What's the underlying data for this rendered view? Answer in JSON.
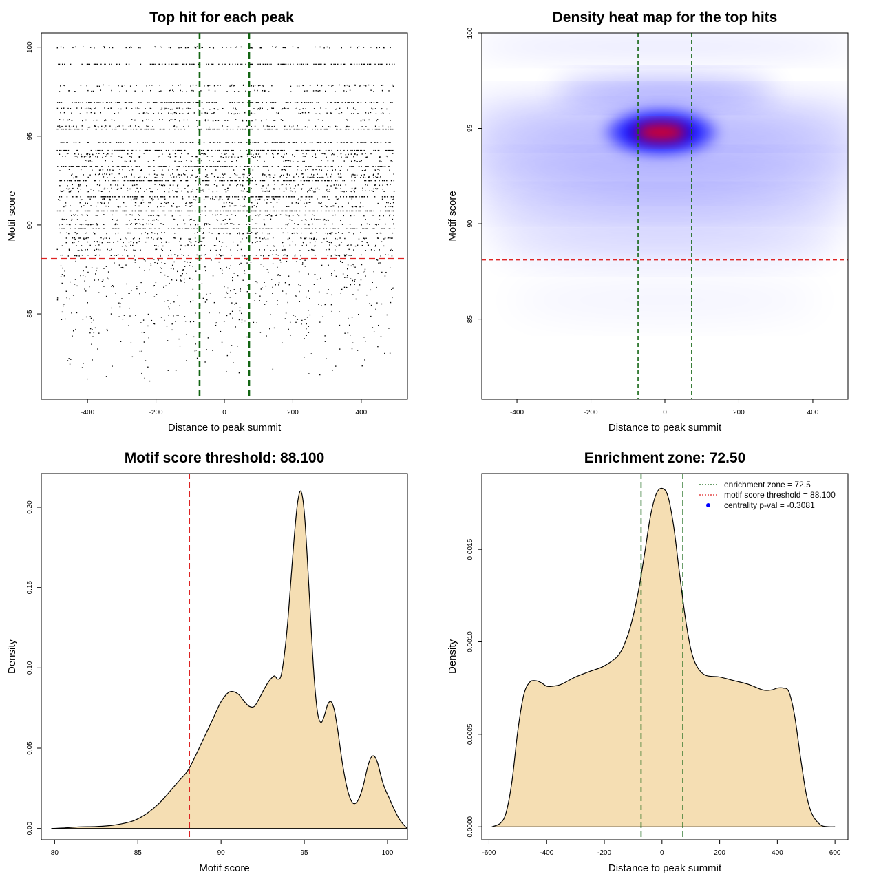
{
  "colors": {
    "threshold": "#dd2222",
    "zone": "#136513",
    "fill": "#f5deb3",
    "heat_low": "#ffffff",
    "heat_mid": "#0000ff",
    "heat_high": "#ff0000"
  },
  "chart_data": [
    {
      "id": "scatter",
      "type": "scatter",
      "title": "Top hit for each peak",
      "xlabel": "Distance to peak summit",
      "ylabel": "Motif score",
      "xlim": [
        -535,
        535
      ],
      "ylim": [
        80.2,
        100.8
      ],
      "xticks": [
        -400,
        -200,
        0,
        200,
        400
      ],
      "yticks": [
        85,
        90,
        95,
        100
      ],
      "xtick_labels": [
        "-400",
        "-200",
        "0",
        "200",
        "400"
      ],
      "ytick_labels": [
        "85",
        "90",
        "95",
        "100"
      ],
      "x_range": [
        -490,
        495
      ],
      "threshold": 88.1,
      "zone": [
        -72.5,
        72.5
      ],
      "dense_levels": [
        99.05,
        96.9,
        95.4,
        94.65,
        94.2,
        93.3,
        92.5,
        91.6,
        90.8,
        89.8
      ],
      "sparse_levels": [
        100,
        97.85,
        97.55,
        96.55,
        96.3,
        95.9,
        95.55,
        94.0,
        93.85,
        93.6,
        93.1,
        92.85,
        92.7,
        92.25,
        92.05,
        91.9,
        91.45,
        91.25,
        91.05,
        90.55,
        90.3,
        90.05,
        89.55,
        89.25,
        89.05,
        88.85,
        88.6,
        88.3
      ],
      "low_level_range": [
        80.8,
        88.1
      ]
    },
    {
      "id": "heatmap",
      "type": "heatmap",
      "title": "Density heat map for the top hits",
      "xlabel": "Distance to peak summit",
      "ylabel": "Motif score",
      "xlim": [
        -495,
        495
      ],
      "ylim": [
        80.8,
        100
      ],
      "xticks": [
        -400,
        -200,
        0,
        200,
        400
      ],
      "yticks": [
        85,
        90,
        95,
        100
      ],
      "xtick_labels": [
        "-400",
        "-200",
        "0",
        "200",
        "400"
      ],
      "ytick_labels": [
        "85",
        "90",
        "95",
        "100"
      ],
      "threshold": 88.1,
      "zone": [
        -72.5,
        72.5
      ],
      "hotspot": {
        "x": -10,
        "y": 94.8
      }
    },
    {
      "id": "score_density",
      "type": "area",
      "title": "Motif score threshold: 88.100",
      "xlabel": "Motif score",
      "ylabel": "Density",
      "xlim": [
        79.2,
        101.2
      ],
      "ylim": [
        -0.007,
        0.221
      ],
      "xticks": [
        80,
        85,
        90,
        95,
        100
      ],
      "yticks": [
        0,
        0.05,
        0.1,
        0.15,
        0.2
      ],
      "xtick_labels": [
        "80",
        "85",
        "90",
        "95",
        "100"
      ],
      "ytick_labels": [
        "0.00",
        "0.05",
        "0.10",
        "0.15",
        "0.20"
      ],
      "threshold": 88.1,
      "x": [
        79.8,
        80.5,
        81.5,
        82.5,
        83.5,
        84.5,
        85.0,
        85.5,
        86.0,
        86.5,
        87.0,
        87.5,
        88.0,
        88.5,
        89.0,
        89.5,
        89.9,
        90.2,
        90.5,
        90.8,
        91.1,
        91.4,
        91.7,
        92.0,
        92.3,
        92.6,
        92.9,
        93.2,
        93.4,
        93.6,
        93.8,
        94.0,
        94.2,
        94.4,
        94.6,
        94.8,
        95.0,
        95.2,
        95.4,
        95.6,
        95.8,
        96.0,
        96.2,
        96.4,
        96.6,
        96.8,
        97.0,
        97.3,
        97.6,
        97.9,
        98.2,
        98.5,
        98.8,
        99.0,
        99.2,
        99.4,
        99.6,
        99.8,
        100.1,
        100.4,
        100.7,
        101.0,
        101.2
      ],
      "y": [
        0,
        0.0003,
        0.001,
        0.0012,
        0.002,
        0.004,
        0.006,
        0.009,
        0.013,
        0.018,
        0.024,
        0.03,
        0.036,
        0.046,
        0.057,
        0.068,
        0.077,
        0.082,
        0.085,
        0.085,
        0.083,
        0.079,
        0.076,
        0.076,
        0.081,
        0.087,
        0.092,
        0.095,
        0.093,
        0.095,
        0.108,
        0.128,
        0.155,
        0.182,
        0.203,
        0.21,
        0.197,
        0.165,
        0.127,
        0.093,
        0.072,
        0.066,
        0.07,
        0.077,
        0.079,
        0.074,
        0.062,
        0.04,
        0.024,
        0.016,
        0.017,
        0.025,
        0.038,
        0.044,
        0.045,
        0.041,
        0.033,
        0.026,
        0.019,
        0.012,
        0.006,
        0.002,
        0
      ]
    },
    {
      "id": "distance_density",
      "type": "area",
      "title": "Enrichment zone: 72.50",
      "xlabel": "Distance to peak summit",
      "ylabel": "Density",
      "xlim": [
        -625,
        645
      ],
      "ylim": [
        -7e-05,
        0.00191
      ],
      "xticks": [
        -600,
        -400,
        -200,
        0,
        200,
        400,
        600
      ],
      "yticks": [
        0,
        0.0005,
        0.001,
        0.0015
      ],
      "xtick_labels": [
        "-600",
        "-400",
        "-200",
        "0",
        "200",
        "400",
        "600"
      ],
      "ytick_labels": [
        "0.0000",
        "0.0005",
        "0.0010",
        "0.0015"
      ],
      "zone": [
        -72.5,
        72.5
      ],
      "x": [
        -590,
        -560,
        -540,
        -520,
        -500,
        -480,
        -460,
        -440,
        -420,
        -400,
        -380,
        -350,
        -300,
        -250,
        -200,
        -150,
        -120,
        -100,
        -80,
        -60,
        -40,
        -20,
        0,
        20,
        40,
        60,
        80,
        100,
        120,
        150,
        200,
        250,
        300,
        350,
        380,
        400,
        420,
        440,
        460,
        480,
        500,
        520,
        550,
        580,
        600
      ],
      "y": [
        0,
        2e-05,
        8e-05,
        0.00025,
        0.00052,
        0.00071,
        0.00078,
        0.00079,
        0.00078,
        0.00076,
        0.00076,
        0.00077,
        0.00081,
        0.00084,
        0.00087,
        0.00093,
        0.00103,
        0.00114,
        0.00129,
        0.00148,
        0.00168,
        0.0018,
        0.00183,
        0.00179,
        0.00163,
        0.00138,
        0.00114,
        0.00096,
        0.00087,
        0.00082,
        0.00081,
        0.00079,
        0.00077,
        0.00074,
        0.00074,
        0.00075,
        0.00075,
        0.00073,
        0.0006,
        0.00038,
        0.00018,
        7e-05,
        1e-05,
        0,
        0
      ],
      "legend": {
        "position": "top-right",
        "entries": [
          {
            "label": "enrichment zone = 72.5",
            "style": "dotted-line",
            "color": "#136513"
          },
          {
            "label": "motif score threshold = 88.100",
            "style": "dotted-line",
            "color": "#dd2222"
          },
          {
            "label": "centrality p-val = -0.3081",
            "style": "dot",
            "color": "#0000ff"
          }
        ]
      }
    }
  ]
}
